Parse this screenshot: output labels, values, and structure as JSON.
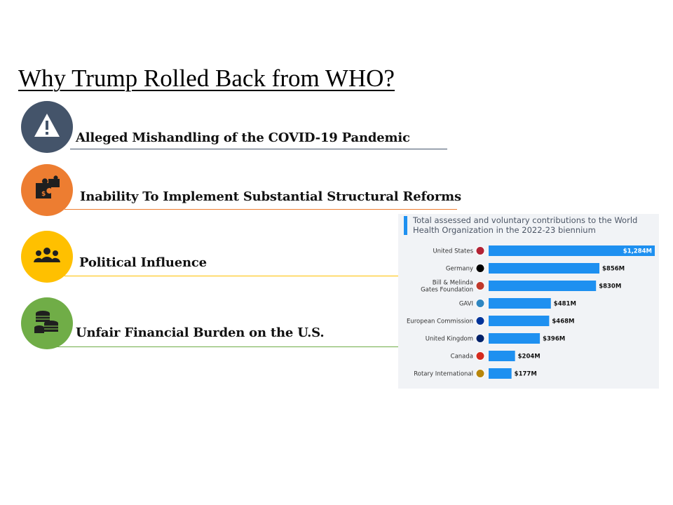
{
  "slide": {
    "title": "Why Trump Rolled Back from WHO?",
    "bullets": [
      {
        "text": "Alleged Mishandling of the COVID-19 Pandemic",
        "icon": "warning-icon",
        "color": "#44546a"
      },
      {
        "text": "Inability To Implement Substantial Structural Reforms",
        "icon": "puzzle-pieces-icon",
        "color": "#ed7d31"
      },
      {
        "text": "Political Influence",
        "icon": "people-group-icon",
        "color": "#ffc000"
      },
      {
        "text": "Unfair Financial Burden on the U.S.",
        "icon": "coin-stacks-icon",
        "color": "#70ad47"
      }
    ]
  },
  "chart_data": {
    "type": "bar",
    "orientation": "horizontal",
    "title": "Total assessed and voluntary contributions to the World Health Organization in the 2022-23 biennium",
    "categories": [
      "United States",
      "Germany",
      "Bill & Melinda\nGates Foundation",
      "GAVI",
      "European Commission",
      "United Kingdom",
      "Canada",
      "Rotary International"
    ],
    "category_icons": [
      "us-flag-icon",
      "germany-flag-icon",
      "gates-foundation-icon",
      "gavi-icon",
      "eu-flag-icon",
      "uk-flag-icon",
      "canada-flag-icon",
      "rotary-icon"
    ],
    "values": [
      1284,
      856,
      830,
      481,
      468,
      396,
      204,
      177
    ],
    "value_labels": [
      "$1,284M",
      "$856M",
      "$830M",
      "$481M",
      "$468M",
      "$396M",
      "$204M",
      "$177M"
    ],
    "unit": "USD millions",
    "xlim": [
      0,
      1284
    ],
    "bar_color": "#1e90f0",
    "grid": false
  }
}
